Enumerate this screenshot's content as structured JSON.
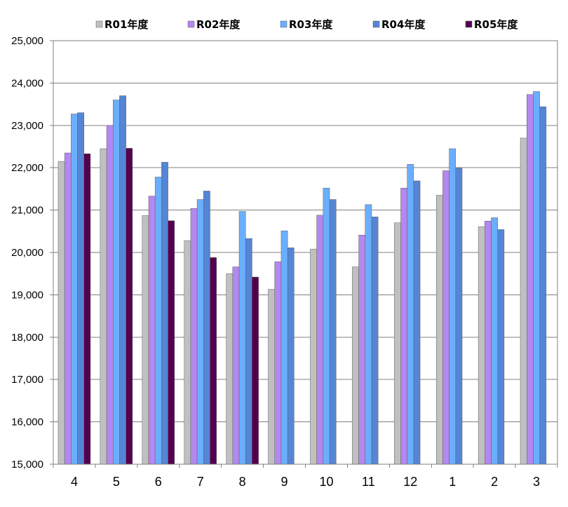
{
  "chart_data": {
    "type": "bar",
    "categories": [
      "4",
      "5",
      "6",
      "7",
      "8",
      "9",
      "10",
      "11",
      "12",
      "1",
      "2",
      "3"
    ],
    "series": [
      {
        "name": "R01年度",
        "color": "#c0c0c0",
        "values": [
          22150,
          22450,
          20870,
          20280,
          19500,
          19130,
          20080,
          19660,
          20700,
          21350,
          20610,
          22700
        ]
      },
      {
        "name": "R02年度",
        "color": "#b388f0",
        "values": [
          22350,
          23000,
          21330,
          21040,
          19660,
          19780,
          20880,
          20410,
          21520,
          21930,
          20740,
          23730
        ]
      },
      {
        "name": "R03年度",
        "color": "#6aafff",
        "values": [
          23270,
          23600,
          21780,
          21250,
          20970,
          20510,
          21520,
          21130,
          22080,
          22450,
          20820,
          23800
        ]
      },
      {
        "name": "R04年度",
        "color": "#5585d5",
        "values": [
          23300,
          23700,
          22130,
          21450,
          20330,
          20110,
          21250,
          20840,
          21690,
          21990,
          20540,
          23440
        ]
      },
      {
        "name": "R05年度",
        "color": "#55004f",
        "values": [
          22330,
          22460,
          20750,
          19880,
          19420,
          null,
          null,
          null,
          null,
          null,
          null,
          null
        ]
      }
    ],
    "ylim": [
      15000,
      25000
    ],
    "yticks": [
      15000,
      16000,
      17000,
      18000,
      19000,
      20000,
      21000,
      22000,
      23000,
      24000,
      25000
    ],
    "ytick_labels": [
      "15,000",
      "16,000",
      "17,000",
      "18,000",
      "19,000",
      "20,000",
      "21,000",
      "22,000",
      "23,000",
      "24,000",
      "25,000"
    ],
    "grid": true,
    "legend_position": "top"
  }
}
